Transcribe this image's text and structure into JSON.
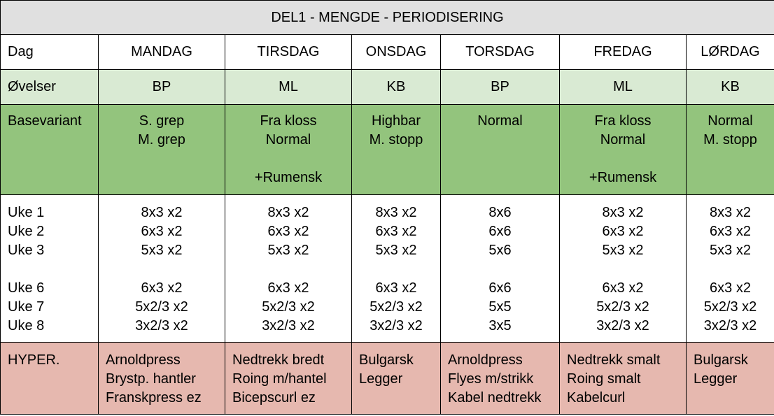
{
  "title": "DEL1 - MENGDE - PERIODISERING",
  "header": {
    "label": "Dag",
    "days": [
      "MANDAG",
      "TIRSDAG",
      "ONSDAG",
      "TORSDAG",
      "FREDAG",
      "LØRDAG"
    ]
  },
  "ovelser": {
    "label": "Øvelser",
    "values": [
      "BP",
      "ML",
      "KB",
      "BP",
      "ML",
      "KB"
    ]
  },
  "basevariant": {
    "label": "Basevariant",
    "values": [
      [
        "S. grep",
        "M. grep",
        "",
        ""
      ],
      [
        "Fra kloss",
        "Normal",
        "",
        "+Rumensk"
      ],
      [
        "Highbar",
        "M. stopp",
        "",
        ""
      ],
      [
        "Normal",
        "",
        "",
        ""
      ],
      [
        "Fra kloss",
        "Normal",
        "",
        "+Rumensk"
      ],
      [
        "Normal",
        "M. stopp",
        "",
        ""
      ]
    ]
  },
  "weeks": {
    "labels": [
      "Uke 1",
      "Uke 2",
      "Uke 3",
      "",
      "Uke 6",
      "Uke 7",
      "Uke 8"
    ],
    "values": [
      [
        "8x3 x2",
        "6x3 x2",
        "5x3 x2",
        "",
        "6x3 x2",
        "5x2/3 x2",
        "3x2/3 x2"
      ],
      [
        "8x3 x2",
        "6x3 x2",
        "5x3 x2",
        "",
        "6x3 x2",
        "5x2/3 x2",
        "3x2/3 x2"
      ],
      [
        "8x3 x2",
        "6x3 x2",
        "5x3 x2",
        "",
        "6x3 x2",
        "5x2/3 x2",
        "3x2/3 x2"
      ],
      [
        "8x6",
        "6x6",
        "5x6",
        "",
        "6x6",
        "5x5",
        "3x5"
      ],
      [
        "8x3 x2",
        "6x3 x2",
        "5x3 x2",
        "",
        "6x3 x2",
        "5x2/3 x2",
        "3x2/3 x2"
      ],
      [
        "8x3 x2",
        "6x3 x2",
        "5x3 x2",
        "",
        "6x3 x2",
        "5x2/3 x2",
        "3x2/3 x2"
      ]
    ]
  },
  "hyper": {
    "label": "HYPER.",
    "values": [
      [
        "Arnoldpress",
        "Brystp. hantler",
        "Franskpress ez"
      ],
      [
        "Nedtrekk bredt",
        "Roing m/hantel",
        "Bicepscurl ez"
      ],
      [
        "Bulgarsk",
        "Legger",
        ""
      ],
      [
        "Arnoldpress",
        "Flyes m/strikk",
        "Kabel nedtrekk"
      ],
      [
        "Nedtrekk smalt",
        "Roing smalt",
        "Kabelcurl"
      ],
      [
        "Bulgarsk",
        "Legger",
        ""
      ]
    ]
  },
  "colors": {
    "title_bg": "#e0e0e0",
    "ovelser_bg": "#d9ead3",
    "basevariant_bg": "#93c47d",
    "hyper_bg": "#e6b8af"
  }
}
